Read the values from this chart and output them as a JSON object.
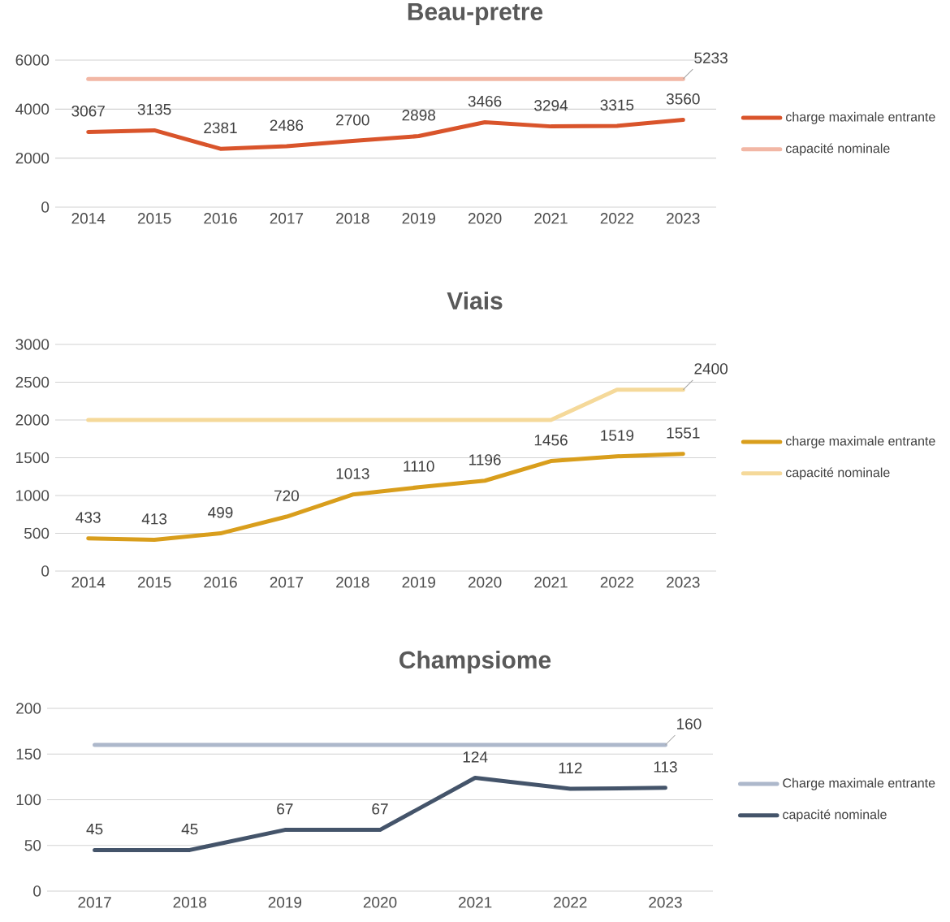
{
  "chart_data": [
    {
      "type": "line",
      "title": "Beau-pretre",
      "categories": [
        "2014",
        "2015",
        "2016",
        "2017",
        "2018",
        "2019",
        "2020",
        "2021",
        "2022",
        "2023"
      ],
      "series": [
        {
          "name": "charge maximale entrante",
          "color": "#d9542b",
          "values": [
            3067,
            3135,
            2381,
            2486,
            2700,
            2898,
            3466,
            3294,
            3315,
            3560
          ],
          "data_labels": true
        },
        {
          "name": "capacité nominale",
          "color": "#f2b7a5",
          "values": [
            5233,
            5233,
            5233,
            5233,
            5233,
            5233,
            5233,
            5233,
            5233,
            5233
          ],
          "value_labels": [
            null,
            null,
            null,
            null,
            null,
            null,
            null,
            null,
            null,
            "5233"
          ]
        }
      ],
      "ylim": [
        0,
        6000
      ],
      "yticks": [
        0,
        2000,
        4000,
        6000
      ],
      "grid": "y",
      "legend": "right",
      "marker": "none",
      "line_style": "solid"
    },
    {
      "type": "line",
      "title": "Viais",
      "categories": [
        "2014",
        "2015",
        "2016",
        "2017",
        "2018",
        "2019",
        "2020",
        "2021",
        "2022",
        "2023"
      ],
      "series": [
        {
          "name": "charge maximale entrante",
          "color": "#d99e1c",
          "values": [
            433,
            413,
            499,
            720,
            1013,
            1110,
            1196,
            1456,
            1519,
            1551
          ],
          "data_labels": true
        },
        {
          "name": "capacité nominale",
          "color": "#f5d99a",
          "values": [
            2000,
            2000,
            2000,
            2000,
            2000,
            2000,
            2000,
            2000,
            2400,
            2400
          ],
          "value_labels": [
            null,
            null,
            null,
            null,
            null,
            null,
            null,
            null,
            null,
            "2400"
          ]
        }
      ],
      "ylim": [
        0,
        3000
      ],
      "yticks": [
        0,
        500,
        1000,
        1500,
        2000,
        2500,
        3000
      ],
      "grid": "y",
      "legend": "right",
      "marker": "none",
      "line_style": "solid"
    },
    {
      "type": "line",
      "title": "Champsiome",
      "categories": [
        "2017",
        "2018",
        "2019",
        "2020",
        "2021",
        "2022",
        "2023"
      ],
      "series": [
        {
          "name": "Charge maximale entrante",
          "color": "#adb8cb",
          "values": [
            160,
            160,
            160,
            160,
            160,
            160,
            160
          ],
          "value_labels": [
            null,
            null,
            null,
            null,
            null,
            null,
            "160"
          ]
        },
        {
          "name": "capacité nominale",
          "color": "#44546a",
          "values": [
            45,
            45,
            67,
            67,
            124,
            112,
            113
          ],
          "data_labels": true
        }
      ],
      "ylim": [
        0,
        200
      ],
      "yticks": [
        0,
        50,
        100,
        150,
        200
      ],
      "grid": "y",
      "legend": "right",
      "marker": "none",
      "line_style": "solid"
    }
  ]
}
